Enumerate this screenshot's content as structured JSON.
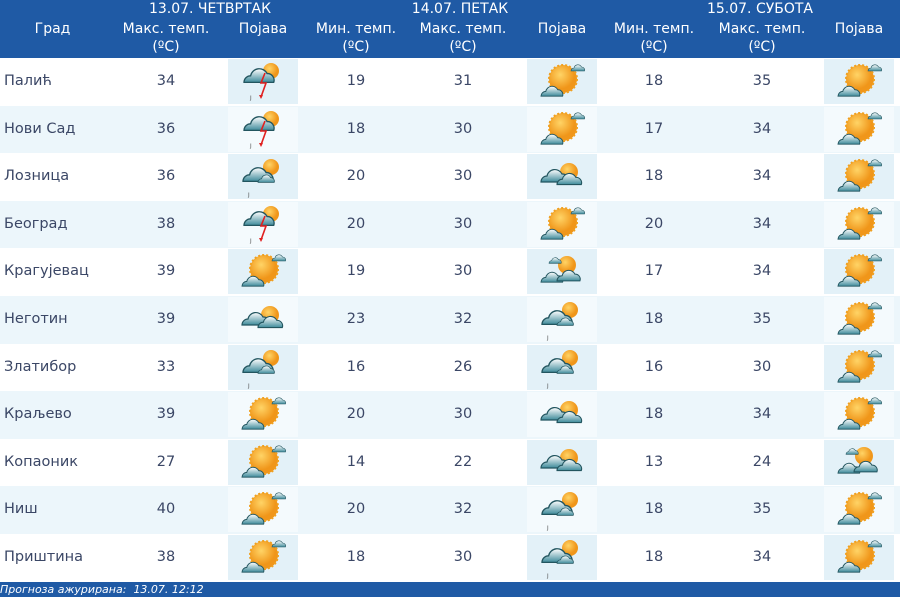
{
  "header": {
    "city_col": "Град",
    "days": [
      "13.07. ЧЕТВРТАК",
      "14.07. ПЕТАК",
      "15.07. СУБОТА"
    ],
    "max_temp": "Макс. темп.",
    "min_temp": "Мин. темп.",
    "unit": "(ºC)",
    "phenomenon": "Појава"
  },
  "rows": [
    {
      "city": "Палић",
      "d1": {
        "max": "34",
        "icon": "thunderstorm"
      },
      "d2": {
        "min": "19",
        "max": "31",
        "icon": "partly-sunny"
      },
      "d3": {
        "min": "18",
        "max": "35",
        "icon": "partly-sunny"
      }
    },
    {
      "city": "Нови Сад",
      "d1": {
        "max": "36",
        "icon": "thunderstorm"
      },
      "d2": {
        "min": "18",
        "max": "30",
        "icon": "partly-sunny"
      },
      "d3": {
        "min": "17",
        "max": "34",
        "icon": "partly-sunny"
      }
    },
    {
      "city": "Лозница",
      "d1": {
        "max": "36",
        "icon": "cloudy-light-rain"
      },
      "d2": {
        "min": "20",
        "max": "30",
        "icon": "mostly-cloudy"
      },
      "d3": {
        "min": "18",
        "max": "34",
        "icon": "partly-sunny"
      }
    },
    {
      "city": "Београд",
      "d1": {
        "max": "38",
        "icon": "thunderstorm"
      },
      "d2": {
        "min": "20",
        "max": "30",
        "icon": "partly-sunny"
      },
      "d3": {
        "min": "20",
        "max": "34",
        "icon": "partly-sunny"
      }
    },
    {
      "city": "Крагујевац",
      "d1": {
        "max": "39",
        "icon": "partly-sunny"
      },
      "d2": {
        "min": "19",
        "max": "30",
        "icon": "sun-behind-clouds"
      },
      "d3": {
        "min": "17",
        "max": "34",
        "icon": "partly-sunny"
      }
    },
    {
      "city": "Неготин",
      "d1": {
        "max": "39",
        "icon": "mostly-cloudy"
      },
      "d2": {
        "min": "23",
        "max": "32",
        "icon": "cloudy-light-rain"
      },
      "d3": {
        "min": "18",
        "max": "35",
        "icon": "partly-sunny"
      }
    },
    {
      "city": "Златибор",
      "d1": {
        "max": "33",
        "icon": "cloudy-light-rain"
      },
      "d2": {
        "min": "16",
        "max": "26",
        "icon": "cloudy-light-rain"
      },
      "d3": {
        "min": "16",
        "max": "30",
        "icon": "partly-sunny"
      }
    },
    {
      "city": "Краљево",
      "d1": {
        "max": "39",
        "icon": "partly-sunny"
      },
      "d2": {
        "min": "20",
        "max": "30",
        "icon": "mostly-cloudy"
      },
      "d3": {
        "min": "18",
        "max": "34",
        "icon": "partly-sunny"
      }
    },
    {
      "city": "Копаоник",
      "d1": {
        "max": "27",
        "icon": "partly-sunny"
      },
      "d2": {
        "min": "14",
        "max": "22",
        "icon": "mostly-cloudy"
      },
      "d3": {
        "min": "13",
        "max": "24",
        "icon": "sun-behind-clouds"
      }
    },
    {
      "city": "Ниш",
      "d1": {
        "max": "40",
        "icon": "partly-sunny"
      },
      "d2": {
        "min": "20",
        "max": "32",
        "icon": "cloudy-light-rain"
      },
      "d3": {
        "min": "18",
        "max": "35",
        "icon": "partly-sunny"
      }
    },
    {
      "city": "Приштина",
      "d1": {
        "max": "38",
        "icon": "partly-sunny"
      },
      "d2": {
        "min": "18",
        "max": "30",
        "icon": "cloudy-light-rain"
      },
      "d3": {
        "min": "18",
        "max": "34",
        "icon": "partly-sunny"
      }
    }
  ],
  "footer": {
    "label": "Прогноза ажурирана:",
    "value": "13.07. 12:12"
  },
  "colors": {
    "header": "#1f5aa5",
    "row_alt": "#ecf6fb",
    "text": "#3b4766",
    "sun": "#f5a623",
    "lightning": "#e02020"
  }
}
